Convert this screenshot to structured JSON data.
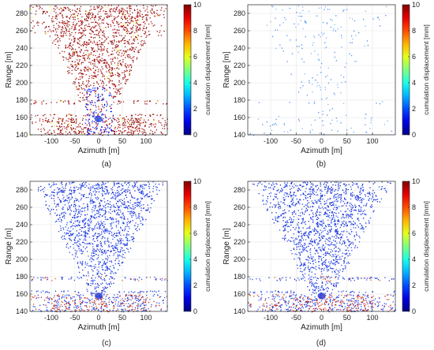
{
  "colors": {
    "speckle_red": "#8f1313",
    "speckle_blue_dark": "#1a2fd0",
    "speckle_blue_light": "#4a8ff0",
    "speckle_orange": "#e05a20",
    "axis": "#222222"
  },
  "chart_data": [
    {
      "type": "heatmap",
      "panel": "(a)",
      "xlabel": "Azimuth [m]",
      "ylabel": "Range [m]",
      "colorbar_label": "cumulation displacement [mm]",
      "xlim": [
        -145,
        145
      ],
      "ylim": [
        140,
        290
      ],
      "xticks": [
        -100,
        -50,
        0,
        50,
        100
      ],
      "yticks": [
        140,
        160,
        180,
        200,
        220,
        240,
        260,
        280
      ],
      "clim": [
        0,
        10
      ],
      "cticks": [
        0,
        2,
        4,
        6,
        8,
        10
      ],
      "grid": true,
      "dominant_displacement_mm": 10
    },
    {
      "type": "heatmap",
      "panel": "(b)",
      "xlabel": "Azimuth [m]",
      "ylabel": "Range [m]",
      "colorbar_label": "cumulation displacement [mm]",
      "xlim": [
        -145,
        145
      ],
      "ylim": [
        140,
        290
      ],
      "xticks": [
        -100,
        -50,
        0,
        50,
        100
      ],
      "yticks": [
        140,
        160,
        180,
        200,
        220,
        240,
        260,
        280
      ],
      "clim": [
        0,
        10
      ],
      "cticks": [
        0,
        2,
        4,
        6,
        8,
        10
      ],
      "grid": true,
      "dominant_displacement_mm": 1
    },
    {
      "type": "heatmap",
      "panel": "(c)",
      "xlabel": "Azimuth [m]",
      "ylabel": "Range [m]",
      "colorbar_label": "cumulation displacement [mm]",
      "xlim": [
        -145,
        145
      ],
      "ylim": [
        140,
        290
      ],
      "xticks": [
        -100,
        -50,
        0,
        50,
        100
      ],
      "yticks": [
        140,
        160,
        180,
        200,
        220,
        240,
        260,
        280
      ],
      "clim": [
        0,
        10
      ],
      "cticks": [
        0,
        2,
        4,
        6,
        8,
        10
      ],
      "grid": true,
      "dominant_displacement_mm": 0.5
    },
    {
      "type": "heatmap",
      "panel": "(d)",
      "xlabel": "Azimuth [m]",
      "ylabel": "Range [m]",
      "colorbar_label": "cumulation displacement [mm]",
      "xlim": [
        -145,
        145
      ],
      "ylim": [
        140,
        290
      ],
      "xticks": [
        -100,
        -50,
        0,
        50,
        100
      ],
      "yticks": [
        140,
        160,
        180,
        200,
        220,
        240,
        260,
        280
      ],
      "clim": [
        0,
        10
      ],
      "cticks": [
        0,
        2,
        4,
        6,
        8,
        10
      ],
      "grid": true,
      "dominant_displacement_mm": 0.5
    }
  ]
}
